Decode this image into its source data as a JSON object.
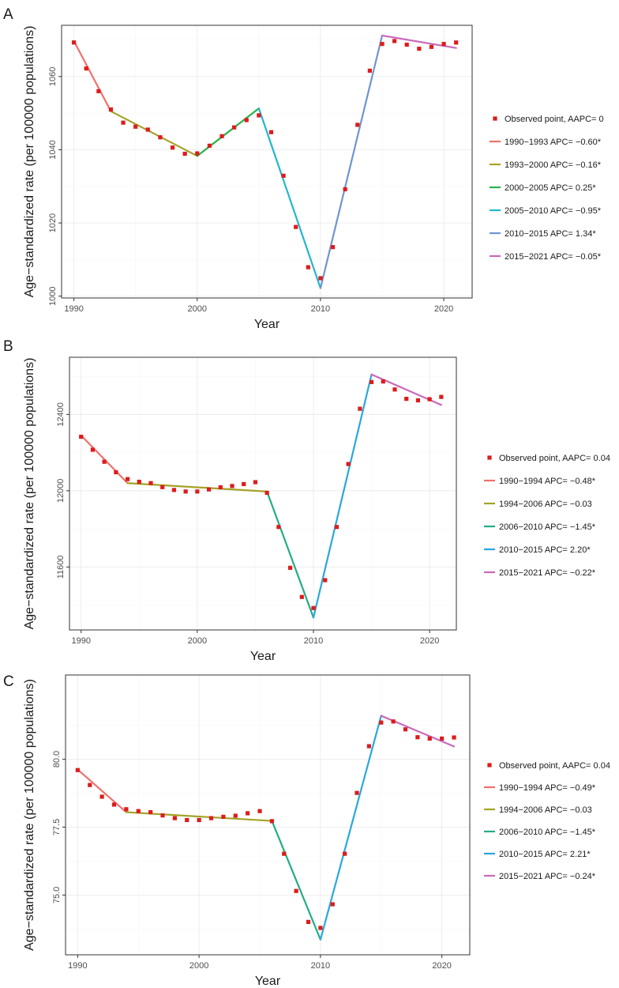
{
  "figure": {
    "xlabel": "Year",
    "ylabel": "Age−standardized rate (per 100000 populations)"
  },
  "colors": {
    "observed": "#dd1c1c",
    "seg_red": "#f0706a",
    "seg_olive": "#a3a327",
    "seg_green": "#2ab24b",
    "seg_teal_green": "#23ad86",
    "seg_cyan": "#23b6cf",
    "seg_blue": "#2aa7df",
    "seg_steel": "#6f94d2",
    "seg_purple": "#c86ab9"
  },
  "chart_data": [
    {
      "type": "line",
      "panel_label": "A",
      "title": "",
      "xlabel": "Year",
      "ylabel": "Age−standardized rate (per 100000 populations)",
      "xlim": [
        1989.0,
        2022.3
      ],
      "ylim": [
        999.5,
        1074.0
      ],
      "x_ticks": [
        1990,
        2000,
        2010,
        2020
      ],
      "y_ticks": [
        1000,
        1020,
        1040,
        1060
      ],
      "y_tick_labels": [
        "1000",
        "1020",
        "1040",
        "1060"
      ],
      "legend_position": "right",
      "observed": {
        "label": "Observed point, AAPC= 0",
        "x": [
          1990,
          1991,
          1992,
          1993,
          1994,
          1995,
          1996,
          1997,
          1998,
          1999,
          2000,
          2001,
          2002,
          2003,
          2004,
          2005,
          2006,
          2007,
          2008,
          2009,
          2010,
          2011,
          2012,
          2013,
          2014,
          2015,
          2016,
          2017,
          2018,
          2019,
          2020,
          2021
        ],
        "y": [
          1069.3,
          1062.2,
          1056.0,
          1051.0,
          1047.4,
          1046.3,
          1045.5,
          1043.4,
          1040.6,
          1038.9,
          1039.0,
          1041.1,
          1043.7,
          1046.1,
          1048.1,
          1049.4,
          1044.8,
          1032.9,
          1018.9,
          1007.9,
          1004.9,
          1013.4,
          1029.2,
          1046.8,
          1061.6,
          1068.9,
          1069.7,
          1068.7,
          1067.6,
          1068.1,
          1068.9,
          1069.3
        ]
      },
      "series": [
        {
          "name": "1990−1993 APC= −0.60*",
          "color": "#f0706a",
          "x": [
            1990,
            1993
          ],
          "y": [
            1069.7,
            1050.5
          ]
        },
        {
          "name": "1993−2000 APC= −0.16*",
          "color": "#a3a327",
          "x": [
            1993,
            2000
          ],
          "y": [
            1050.5,
            1038.3
          ]
        },
        {
          "name": "2000−2005 APC= 0.25*",
          "color": "#2ab24b",
          "x": [
            2000,
            2005
          ],
          "y": [
            1038.3,
            1051.3
          ]
        },
        {
          "name": "2005−2010 APC= −0.95*",
          "color": "#23b6cf",
          "x": [
            2005,
            2010
          ],
          "y": [
            1051.3,
            1002.2
          ]
        },
        {
          "name": "2010−2015 APC= 1.34*",
          "color": "#6f94d2",
          "x": [
            2010,
            2015
          ],
          "y": [
            1002.2,
            1071.2
          ]
        },
        {
          "name": "2015−2021 APC= −0.05*",
          "color": "#c86ab9",
          "x": [
            2015,
            2021
          ],
          "y": [
            1071.2,
            1067.8
          ]
        }
      ]
    },
    {
      "type": "line",
      "panel_label": "B",
      "title": "",
      "xlabel": "Year",
      "ylabel": "Age−standardized rate (per 100000 populations)",
      "xlim": [
        1989.0,
        2022.3
      ],
      "ylim": [
        11270,
        12700
      ],
      "x_ticks": [
        1990,
        2000,
        2010,
        2020
      ],
      "y_ticks": [
        11600,
        12000,
        12400
      ],
      "y_tick_labels": [
        "11600",
        "12000",
        "12400"
      ],
      "legend_position": "right",
      "observed": {
        "label": "Observed point, AAPC= 0.04",
        "x": [
          1990,
          1991,
          1992,
          1993,
          1994,
          1995,
          1996,
          1997,
          1998,
          1999,
          2000,
          2001,
          2002,
          2003,
          2004,
          2005,
          2006,
          2007,
          2008,
          2009,
          2010,
          2011,
          2012,
          2013,
          2014,
          2015,
          2016,
          2017,
          2018,
          2019,
          2020,
          2021
        ],
        "y": [
          12283,
          12215,
          12152,
          12097,
          12061,
          12047,
          12040,
          12019,
          12004,
          11996,
          11996,
          12007,
          12018,
          12025,
          12035,
          12045,
          11989,
          11810,
          11596,
          11443,
          11385,
          11531,
          11810,
          12140,
          12430,
          12570,
          12573,
          12531,
          12482,
          12474,
          12480,
          12492
        ]
      },
      "series": [
        {
          "name": "1990−1994 APC= −0.48*",
          "color": "#f0706a",
          "x": [
            1990,
            1994
          ],
          "y": [
            12290,
            12040
          ]
        },
        {
          "name": "1994−2006 APC= −0.03",
          "color": "#a3a327",
          "x": [
            1994,
            2006
          ],
          "y": [
            12040,
            11996
          ]
        },
        {
          "name": "2006−2010 APC= −1.45*",
          "color": "#23ad86",
          "x": [
            2006,
            2010
          ],
          "y": [
            11996,
            11335
          ]
        },
        {
          "name": "2010−2015 APC= 2.20*",
          "color": "#2aa7df",
          "x": [
            2010,
            2015
          ],
          "y": [
            11335,
            12610
          ]
        },
        {
          "name": "2015−2021 APC= −0.22*",
          "color": "#c86ab9",
          "x": [
            2015,
            2021
          ],
          "y": [
            12610,
            12450
          ]
        }
      ]
    },
    {
      "type": "line",
      "panel_label": "C",
      "title": "",
      "xlabel": "Year",
      "ylabel": "Age−standardized rate (per 100000 populations)",
      "xlim": [
        1989.0,
        2022.3
      ],
      "ylim": [
        72.8,
        83.1
      ],
      "x_ticks": [
        1990,
        2000,
        2010,
        2020
      ],
      "y_ticks": [
        75.0,
        77.5,
        80.0
      ],
      "y_tick_labels": [
        "75.0",
        "77.5",
        "80.0"
      ],
      "legend_position": "right",
      "observed": {
        "label": "Observed point, AAPC= 0.04",
        "x": [
          1990,
          1991,
          1992,
          1993,
          1994,
          1995,
          1996,
          1997,
          1998,
          1999,
          2000,
          2001,
          2002,
          2003,
          2004,
          2005,
          2006,
          2007,
          2008,
          2009,
          2010,
          2011,
          2012,
          2013,
          2014,
          2015,
          2016,
          2017,
          2018,
          2019,
          2020,
          2021
        ],
        "y": [
          79.6,
          79.05,
          78.62,
          78.33,
          78.16,
          78.09,
          78.05,
          77.93,
          77.83,
          77.76,
          77.76,
          77.83,
          77.88,
          77.92,
          78.01,
          78.09,
          77.72,
          76.52,
          75.15,
          74.01,
          73.79,
          74.66,
          76.52,
          78.76,
          80.48,
          81.35,
          81.39,
          81.1,
          80.81,
          80.76,
          80.76,
          80.8
        ]
      },
      "series": [
        {
          "name": "1990−1994 APC= −0.49*",
          "color": "#f0706a",
          "x": [
            1990,
            1994
          ],
          "y": [
            79.62,
            78.05
          ]
        },
        {
          "name": "1994−2006 APC= −0.03",
          "color": "#a3a327",
          "x": [
            1994,
            2006
          ],
          "y": [
            78.05,
            77.73
          ]
        },
        {
          "name": "2006−2010 APC= −1.45*",
          "color": "#23ad86",
          "x": [
            2006,
            2010
          ],
          "y": [
            77.73,
            73.36
          ]
        },
        {
          "name": "2010−2015 APC= 2.21*",
          "color": "#2aa7df",
          "x": [
            2010,
            2015
          ],
          "y": [
            73.36,
            81.6
          ]
        },
        {
          "name": "2015−2021 APC= −0.24*",
          "color": "#c86ab9",
          "x": [
            2015,
            2021
          ],
          "y": [
            81.6,
            80.47
          ]
        }
      ]
    }
  ]
}
